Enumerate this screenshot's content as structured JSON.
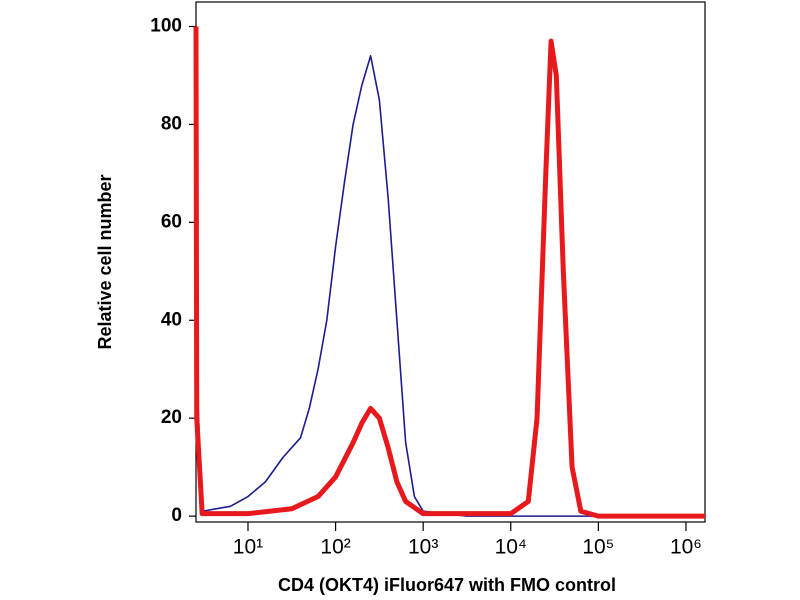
{
  "chart_data": {
    "type": "line",
    "xlabel": "CD4 (OKT4) iFluor647 with FMO control",
    "ylabel": "Relative cell number",
    "xscale": "log",
    "xlim": [
      2.55,
      1650000
    ],
    "ylim": [
      -1.2,
      105
    ],
    "xticks": [
      {
        "value": 10,
        "label": "10¹"
      },
      {
        "value": 100,
        "label": "10²"
      },
      {
        "value": 1000,
        "label": "10³"
      },
      {
        "value": 10000,
        "label": "10⁴"
      },
      {
        "value": 100000,
        "label": "10⁵"
      },
      {
        "value": 1000000,
        "label": "10⁶"
      }
    ],
    "yticks": [
      0,
      20,
      40,
      60,
      80,
      100
    ],
    "series": [
      {
        "color": "#1c1c8f",
        "width": 1.6,
        "x": [
          2.55,
          2.6,
          3,
          6.3,
          10,
          15.8,
          25.1,
          31.6,
          39.8,
          50.1,
          63.1,
          79.4,
          100,
          125.9,
          158.5,
          199.5,
          251.2,
          316.2,
          398.1,
          501.2,
          631,
          794.3,
          1000,
          3162,
          1650000
        ],
        "values": [
          100,
          30,
          1,
          2,
          4,
          7,
          12,
          14,
          16,
          22,
          30,
          40,
          55,
          68,
          80,
          88,
          94,
          85,
          65,
          40,
          15,
          4,
          1,
          0,
          0
        ]
      },
      {
        "color": "#e8191c",
        "width": 5,
        "x": [
          2.55,
          2.6,
          3,
          10,
          31.6,
          63.1,
          100,
          158.5,
          199.5,
          251.2,
          316.2,
          398.1,
          501.2,
          631,
          1000,
          3162,
          10000,
          15850,
          19950,
          25120,
          28840,
          33110,
          39810,
          50120,
          63100,
          100000,
          1650000
        ],
        "values": [
          100,
          20,
          0.5,
          0.5,
          1.5,
          4,
          8,
          15,
          19,
          22,
          20,
          14,
          7,
          3,
          0.5,
          0.5,
          0.5,
          3,
          20,
          70,
          97,
          90,
          50,
          10,
          1,
          0,
          0
        ]
      }
    ]
  }
}
